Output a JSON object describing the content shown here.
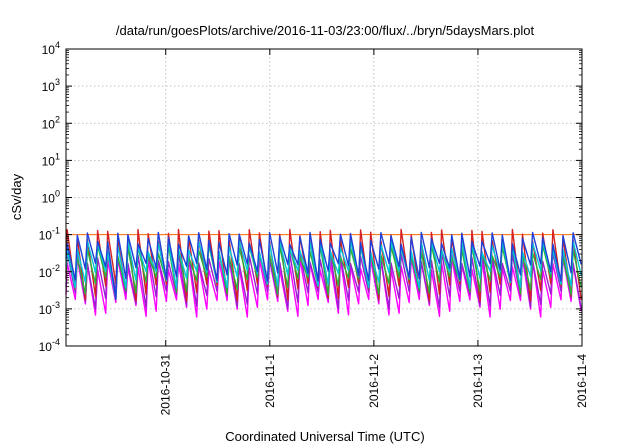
{
  "chart_data": {
    "type": "line",
    "title": "/data/run/goesPlots/archive/2016-11-03/23:00/flux/../bryn/5daysMars.plot",
    "xlabel": "Coordinated Universal Time (UTC)",
    "ylabel": "cSv/day",
    "yscale": "log",
    "ylim": [
      0.0001,
      10000
    ],
    "y_ticks": [
      {
        "base": "10",
        "exp": "-4"
      },
      {
        "base": "10",
        "exp": "-3"
      },
      {
        "base": "10",
        "exp": "-2"
      },
      {
        "base": "10",
        "exp": "-1"
      },
      {
        "base": "10",
        "exp": "0"
      },
      {
        "base": "10",
        "exp": "1"
      },
      {
        "base": "10",
        "exp": "2"
      },
      {
        "base": "10",
        "exp": "3"
      },
      {
        "base": "10",
        "exp": "4"
      }
    ],
    "xlim": [
      "2016-10-30 01:00",
      "2016-11-04 00:00"
    ],
    "x_ticks": [
      "2016-10-31",
      "2016-11-1",
      "2016-11-2",
      "2016-11-3",
      "2016-11-4"
    ],
    "grid": true,
    "legend": "none",
    "reference_line": {
      "y": 0.1,
      "color": "#ff6a00"
    },
    "pattern": {
      "cycles": 51,
      "period_hours": 2.33,
      "description": "sawtooth: sharp rise to peak, gradual decay to trough within each cycle"
    },
    "series": [
      {
        "color": "#1f3fd8",
        "peak": 0.1,
        "trough": 0.014
      },
      {
        "color": "#00c8d8",
        "peak": 0.06,
        "trough": 0.009
      },
      {
        "color": "#2ab03a",
        "peak": 0.045,
        "trough": 0.006
      },
      {
        "color": "#d42020",
        "peak": 0.12,
        "trough": 0.004
      },
      {
        "color": "#9a1fd0",
        "peak": 0.03,
        "trough": 0.0025
      },
      {
        "color": "#ff00ff",
        "peak": 0.02,
        "trough": 0.0015
      }
    ],
    "anomaly": {
      "cycle_index": 4,
      "trough_drop": 0.0018
    }
  }
}
